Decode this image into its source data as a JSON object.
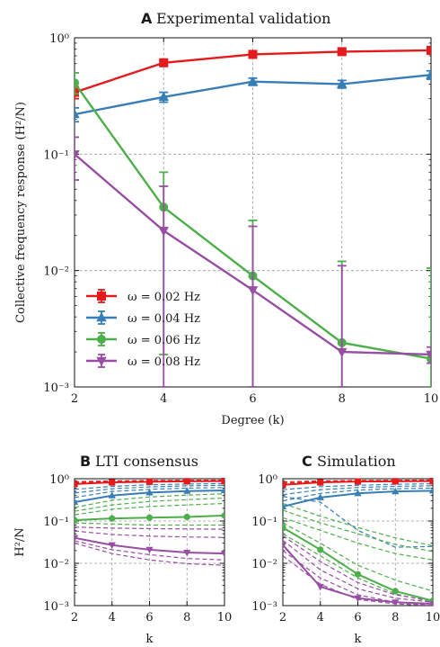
{
  "colors": {
    "red": "#e41a1c",
    "blue": "#377eb8",
    "green": "#4daf4a",
    "purple": "#984ea3"
  },
  "chart_data": [
    {
      "panel": "A",
      "title": "Experimental validation",
      "type": "line",
      "xlabel": "Degree (k)",
      "ylabel": "Collective frequency response (H²/N)",
      "x": [
        2,
        4,
        6,
        8,
        10
      ],
      "xticks": [
        "2",
        "4",
        "6",
        "8",
        "10"
      ],
      "yscale": "log",
      "ylim": [
        0.001,
        1
      ],
      "yticks": [
        "10⁻³",
        "10⁻²",
        "10⁻¹",
        "10⁰"
      ],
      "grid": true,
      "legend": "lower-left",
      "series": [
        {
          "name": "ω = 0.02 Hz",
          "marker": "square",
          "color_key": "red",
          "values": [
            0.34,
            0.61,
            0.72,
            0.76,
            0.78
          ],
          "err_low": [
            0.3,
            0.58,
            0.68,
            0.72,
            0.74
          ],
          "err_high": [
            0.38,
            0.64,
            0.76,
            0.8,
            0.82
          ]
        },
        {
          "name": "ω = 0.04 Hz",
          "marker": "triangle-up",
          "color_key": "blue",
          "values": [
            0.22,
            0.31,
            0.42,
            0.4,
            0.48
          ],
          "err_low": [
            0.19,
            0.28,
            0.39,
            0.37,
            0.44
          ],
          "err_high": [
            0.25,
            0.34,
            0.45,
            0.43,
            0.52
          ]
        },
        {
          "name": "ω = 0.06 Hz",
          "marker": "circle",
          "color_key": "green",
          "values": [
            0.41,
            0.035,
            0.009,
            0.0024,
            0.00175
          ],
          "err_low": [
            0.33,
            0.0019,
            0.001,
            0.001,
            0.001
          ],
          "err_high": [
            0.5,
            0.07,
            0.027,
            0.012,
            0.0105
          ]
        },
        {
          "name": "ω = 0.08 Hz",
          "marker": "triangle-down",
          "color_key": "purple",
          "values": [
            0.1,
            0.022,
            0.0068,
            0.002,
            0.0019
          ],
          "err_low": [
            0.06,
            0.001,
            0.001,
            0.001,
            0.0016
          ],
          "err_high": [
            0.14,
            0.053,
            0.024,
            0.011,
            0.0022
          ]
        }
      ]
    },
    {
      "panel": "B",
      "title": "LTI consensus",
      "type": "line",
      "xlabel": "k",
      "ylabel": "H²/N",
      "x": [
        2,
        4,
        6,
        8,
        10
      ],
      "xticks": [
        "2",
        "4",
        "6",
        "8",
        "10"
      ],
      "yscale": "log",
      "ylim": [
        0.001,
        1
      ],
      "yticks": [
        "10⁻³",
        "10⁻²",
        "10⁻¹",
        "10⁰"
      ],
      "grid": true,
      "series": [
        {
          "color_key": "red",
          "marker": "square",
          "values": [
            0.75,
            0.82,
            0.85,
            0.87,
            0.88
          ]
        },
        {
          "color_key": "blue",
          "marker": "triangle-up",
          "values": [
            0.28,
            0.4,
            0.47,
            0.51,
            0.53
          ]
        },
        {
          "color_key": "green",
          "marker": "circle",
          "values": [
            0.105,
            0.115,
            0.12,
            0.125,
            0.135
          ]
        },
        {
          "color_key": "purple",
          "marker": "triangle-down",
          "values": [
            0.04,
            0.027,
            0.021,
            0.018,
            0.017
          ]
        }
      ],
      "dashed_series": [
        {
          "color_key": "red",
          "values": [
            0.8,
            0.86,
            0.89,
            0.9,
            0.91
          ]
        },
        {
          "color_key": "red",
          "values": [
            0.85,
            0.89,
            0.91,
            0.92,
            0.93
          ]
        },
        {
          "color_key": "blue",
          "values": [
            0.36,
            0.5,
            0.56,
            0.6,
            0.62
          ]
        },
        {
          "color_key": "blue",
          "values": [
            0.46,
            0.58,
            0.64,
            0.68,
            0.7
          ]
        },
        {
          "color_key": "blue",
          "values": [
            0.56,
            0.66,
            0.72,
            0.75,
            0.77
          ]
        },
        {
          "color_key": "green",
          "values": [
            0.14,
            0.19,
            0.22,
            0.24,
            0.26
          ]
        },
        {
          "color_key": "green",
          "values": [
            0.17,
            0.24,
            0.29,
            0.32,
            0.35
          ]
        },
        {
          "color_key": "green",
          "values": [
            0.21,
            0.31,
            0.37,
            0.41,
            0.44
          ]
        },
        {
          "color_key": "green",
          "values": [
            0.09,
            0.085,
            0.08,
            0.08,
            0.08
          ]
        },
        {
          "color_key": "purple",
          "values": [
            0.058,
            0.048,
            0.044,
            0.042,
            0.041
          ]
        },
        {
          "color_key": "purple",
          "values": [
            0.072,
            0.068,
            0.066,
            0.065,
            0.064
          ]
        },
        {
          "color_key": "purple",
          "values": [
            0.034,
            0.021,
            0.016,
            0.013,
            0.012
          ]
        },
        {
          "color_key": "purple",
          "values": [
            0.03,
            0.017,
            0.012,
            0.0098,
            0.009
          ]
        }
      ]
    },
    {
      "panel": "C",
      "title": "Simulation",
      "type": "line",
      "xlabel": "k",
      "ylabel": "",
      "x": [
        2,
        4,
        6,
        8,
        10
      ],
      "xticks": [
        "2",
        "4",
        "6",
        "8",
        "10"
      ],
      "yscale": "log",
      "ylim": [
        0.001,
        1
      ],
      "yticks": [
        "10⁻³",
        "10⁻²",
        "10⁻¹",
        "10⁰"
      ],
      "grid": true,
      "series": [
        {
          "color_key": "red",
          "marker": "square",
          "values": [
            0.72,
            0.82,
            0.86,
            0.87,
            0.88
          ]
        },
        {
          "color_key": "blue",
          "marker": "triangle-up",
          "values": [
            0.22,
            0.36,
            0.45,
            0.5,
            0.52
          ]
        },
        {
          "color_key": "green",
          "marker": "circle",
          "values": [
            0.07,
            0.021,
            0.0055,
            0.0022,
            0.0013
          ]
        },
        {
          "color_key": "purple",
          "marker": "triangle-down",
          "values": [
            0.027,
            0.0028,
            0.0015,
            0.0012,
            0.0011
          ]
        }
      ],
      "dashed_series": [
        {
          "color_key": "red",
          "values": [
            0.78,
            0.86,
            0.89,
            0.9,
            0.91
          ]
        },
        {
          "color_key": "red",
          "values": [
            0.84,
            0.89,
            0.91,
            0.92,
            0.93
          ]
        },
        {
          "color_key": "blue",
          "values": [
            0.3,
            0.45,
            0.54,
            0.58,
            0.6
          ]
        },
        {
          "color_key": "blue",
          "values": [
            0.42,
            0.55,
            0.62,
            0.66,
            0.68
          ]
        },
        {
          "color_key": "blue",
          "values": [
            0.55,
            0.65,
            0.7,
            0.74,
            0.76
          ]
        },
        {
          "color_key": "blue",
          "values": [
            0.38,
            0.28,
            0.06,
            0.024,
            0.025
          ]
        },
        {
          "color_key": "green",
          "values": [
            0.12,
            0.06,
            0.03,
            0.017,
            0.012
          ]
        },
        {
          "color_key": "green",
          "values": [
            0.18,
            0.09,
            0.05,
            0.028,
            0.019
          ]
        },
        {
          "color_key": "green",
          "values": [
            0.26,
            0.13,
            0.07,
            0.04,
            0.026
          ]
        },
        {
          "color_key": "green",
          "values": [
            0.05,
            0.015,
            0.0045,
            0.0019,
            0.0012
          ]
        },
        {
          "color_key": "green",
          "values": [
            0.09,
            0.03,
            0.009,
            0.004,
            0.0022
          ]
        },
        {
          "color_key": "purple",
          "values": [
            0.02,
            0.0045,
            0.0018,
            0.0012,
            0.001
          ]
        },
        {
          "color_key": "purple",
          "values": [
            0.035,
            0.007,
            0.0025,
            0.0015,
            0.0012
          ]
        },
        {
          "color_key": "purple",
          "values": [
            0.045,
            0.011,
            0.0035,
            0.0018,
            0.0013
          ]
        },
        {
          "color_key": "purple",
          "values": [
            0.015,
            0.0032,
            0.0014,
            0.0011,
            0.001
          ]
        }
      ]
    }
  ]
}
